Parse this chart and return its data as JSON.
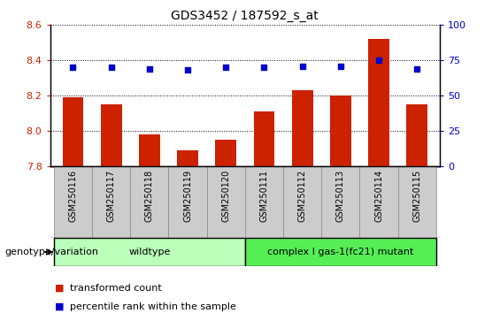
{
  "title": "GDS3452 / 187592_s_at",
  "samples": [
    "GSM250116",
    "GSM250117",
    "GSM250118",
    "GSM250119",
    "GSM250120",
    "GSM250111",
    "GSM250112",
    "GSM250113",
    "GSM250114",
    "GSM250115"
  ],
  "bar_values": [
    8.19,
    8.15,
    7.98,
    7.89,
    7.95,
    8.11,
    8.23,
    8.2,
    8.52,
    8.15
  ],
  "percentile_values": [
    70,
    70,
    69,
    68,
    70,
    70,
    71,
    71,
    75,
    69
  ],
  "ylim_left": [
    7.8,
    8.6
  ],
  "ylim_right": [
    0,
    100
  ],
  "yticks_left": [
    7.8,
    8.0,
    8.2,
    8.4,
    8.6
  ],
  "yticks_right": [
    0,
    25,
    50,
    75,
    100
  ],
  "bar_color": "#cc2200",
  "dot_color": "#0000cc",
  "grid_color": "#000000",
  "background_color": "#ffffff",
  "wildtype_label": "wildtype",
  "mutant_label": "complex I gas-1(fc21) mutant",
  "wildtype_color": "#bbffbb",
  "mutant_color": "#55ee55",
  "genotype_label": "genotype/variation",
  "legend_bar_label": "transformed count",
  "legend_dot_label": "percentile rank within the sample",
  "wildtype_count": 5,
  "mutant_count": 5,
  "tick_label_color_left": "#cc2200",
  "tick_label_color_right": "#0000cc",
  "bar_bottom": 7.8,
  "sample_label_bg": "#cccccc",
  "sample_label_border": "#888888"
}
